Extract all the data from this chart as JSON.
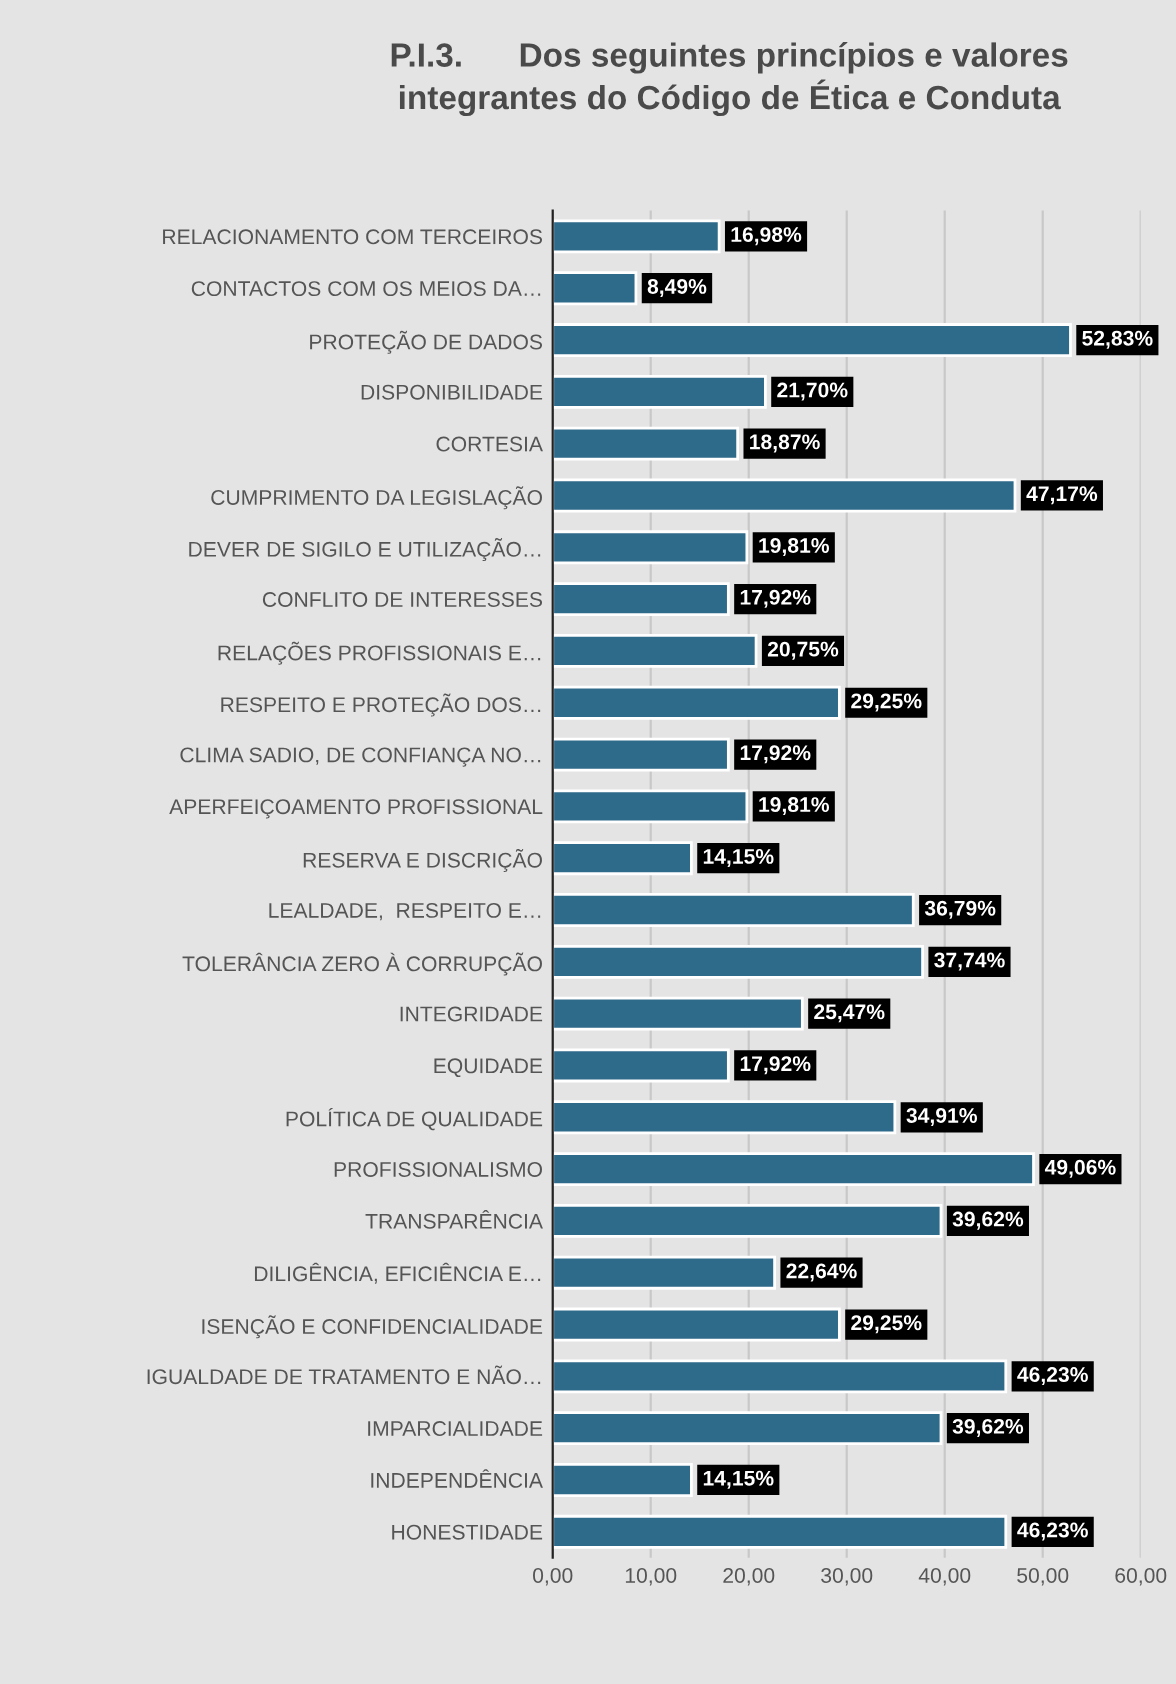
{
  "chart_data": {
    "type": "bar",
    "orientation": "horizontal",
    "title": "P.I.3.      Dos seguintes princípios e valores\nintegrantes do Código de Ética e Conduta",
    "categories": [
      "RELACIONAMENTO COM TERCEIROS",
      "CONTACTOS COM OS MEIOS DA…",
      "PROTEÇÃO DE DADOS",
      "DISPONIBILIDADE",
      "CORTESIA",
      "CUMPRIMENTO DA LEGISLAÇÃO",
      "DEVER DE SIGILO E UTILIZAÇÃO…",
      "CONFLITO DE INTERESSES",
      "RELAÇÕES PROFISSIONAIS E…",
      "RESPEITO E PROTEÇÃO DOS…",
      "CLIMA SADIO, DE CONFIANÇA NO…",
      "APERFEIÇOAMENTO PROFISSIONAL",
      "RESERVA E DISCRIÇÃO",
      "LEALDADE,  RESPEITO E…",
      "TOLERÂNCIA ZERO À CORRUPÇÃO",
      "INTEGRIDADE",
      "EQUIDADE",
      "POLÍTICA DE QUALIDADE",
      "PROFISSIONALISMO",
      "TRANSPARÊNCIA",
      "DILIGÊNCIA, EFICIÊNCIA E…",
      "ISENÇÃO E CONFIDENCIALIDADE",
      "IGUALDADE DE TRATAMENTO E NÃO…",
      "IMPARCIALIDADE",
      "INDEPENDÊNCIA",
      "HONESTIDADE"
    ],
    "values": [
      16.98,
      8.49,
      52.83,
      21.7,
      18.87,
      47.17,
      19.81,
      17.92,
      20.75,
      29.25,
      17.92,
      19.81,
      14.15,
      36.79,
      37.74,
      25.47,
      17.92,
      34.91,
      49.06,
      39.62,
      22.64,
      29.25,
      46.23,
      39.62,
      14.15,
      46.23
    ],
    "value_labels": [
      "16,98%",
      "8,49%",
      "52,83%",
      "21,70%",
      "18,87%",
      "47,17%",
      "19,81%",
      "17,92%",
      "20,75%",
      "29,25%",
      "17,92%",
      "19,81%",
      "14,15%",
      "36,79%",
      "37,74%",
      "25,47%",
      "17,92%",
      "34,91%",
      "49,06%",
      "39,62%",
      "22,64%",
      "29,25%",
      "46,23%",
      "39,62%",
      "14,15%",
      "46,23%"
    ],
    "color": "#2e6a8a",
    "xlim": [
      0,
      60
    ],
    "xticks": [
      {
        "value": 0,
        "label": "0,00"
      },
      {
        "value": 10,
        "label": "10,00"
      },
      {
        "value": 20,
        "label": "20,00"
      },
      {
        "value": 30,
        "label": "30,00"
      },
      {
        "value": 40,
        "label": "40,00"
      },
      {
        "value": 50,
        "label": "50,00"
      },
      {
        "value": 60,
        "label": "60,00"
      }
    ],
    "grid": "x",
    "legend": false
  }
}
